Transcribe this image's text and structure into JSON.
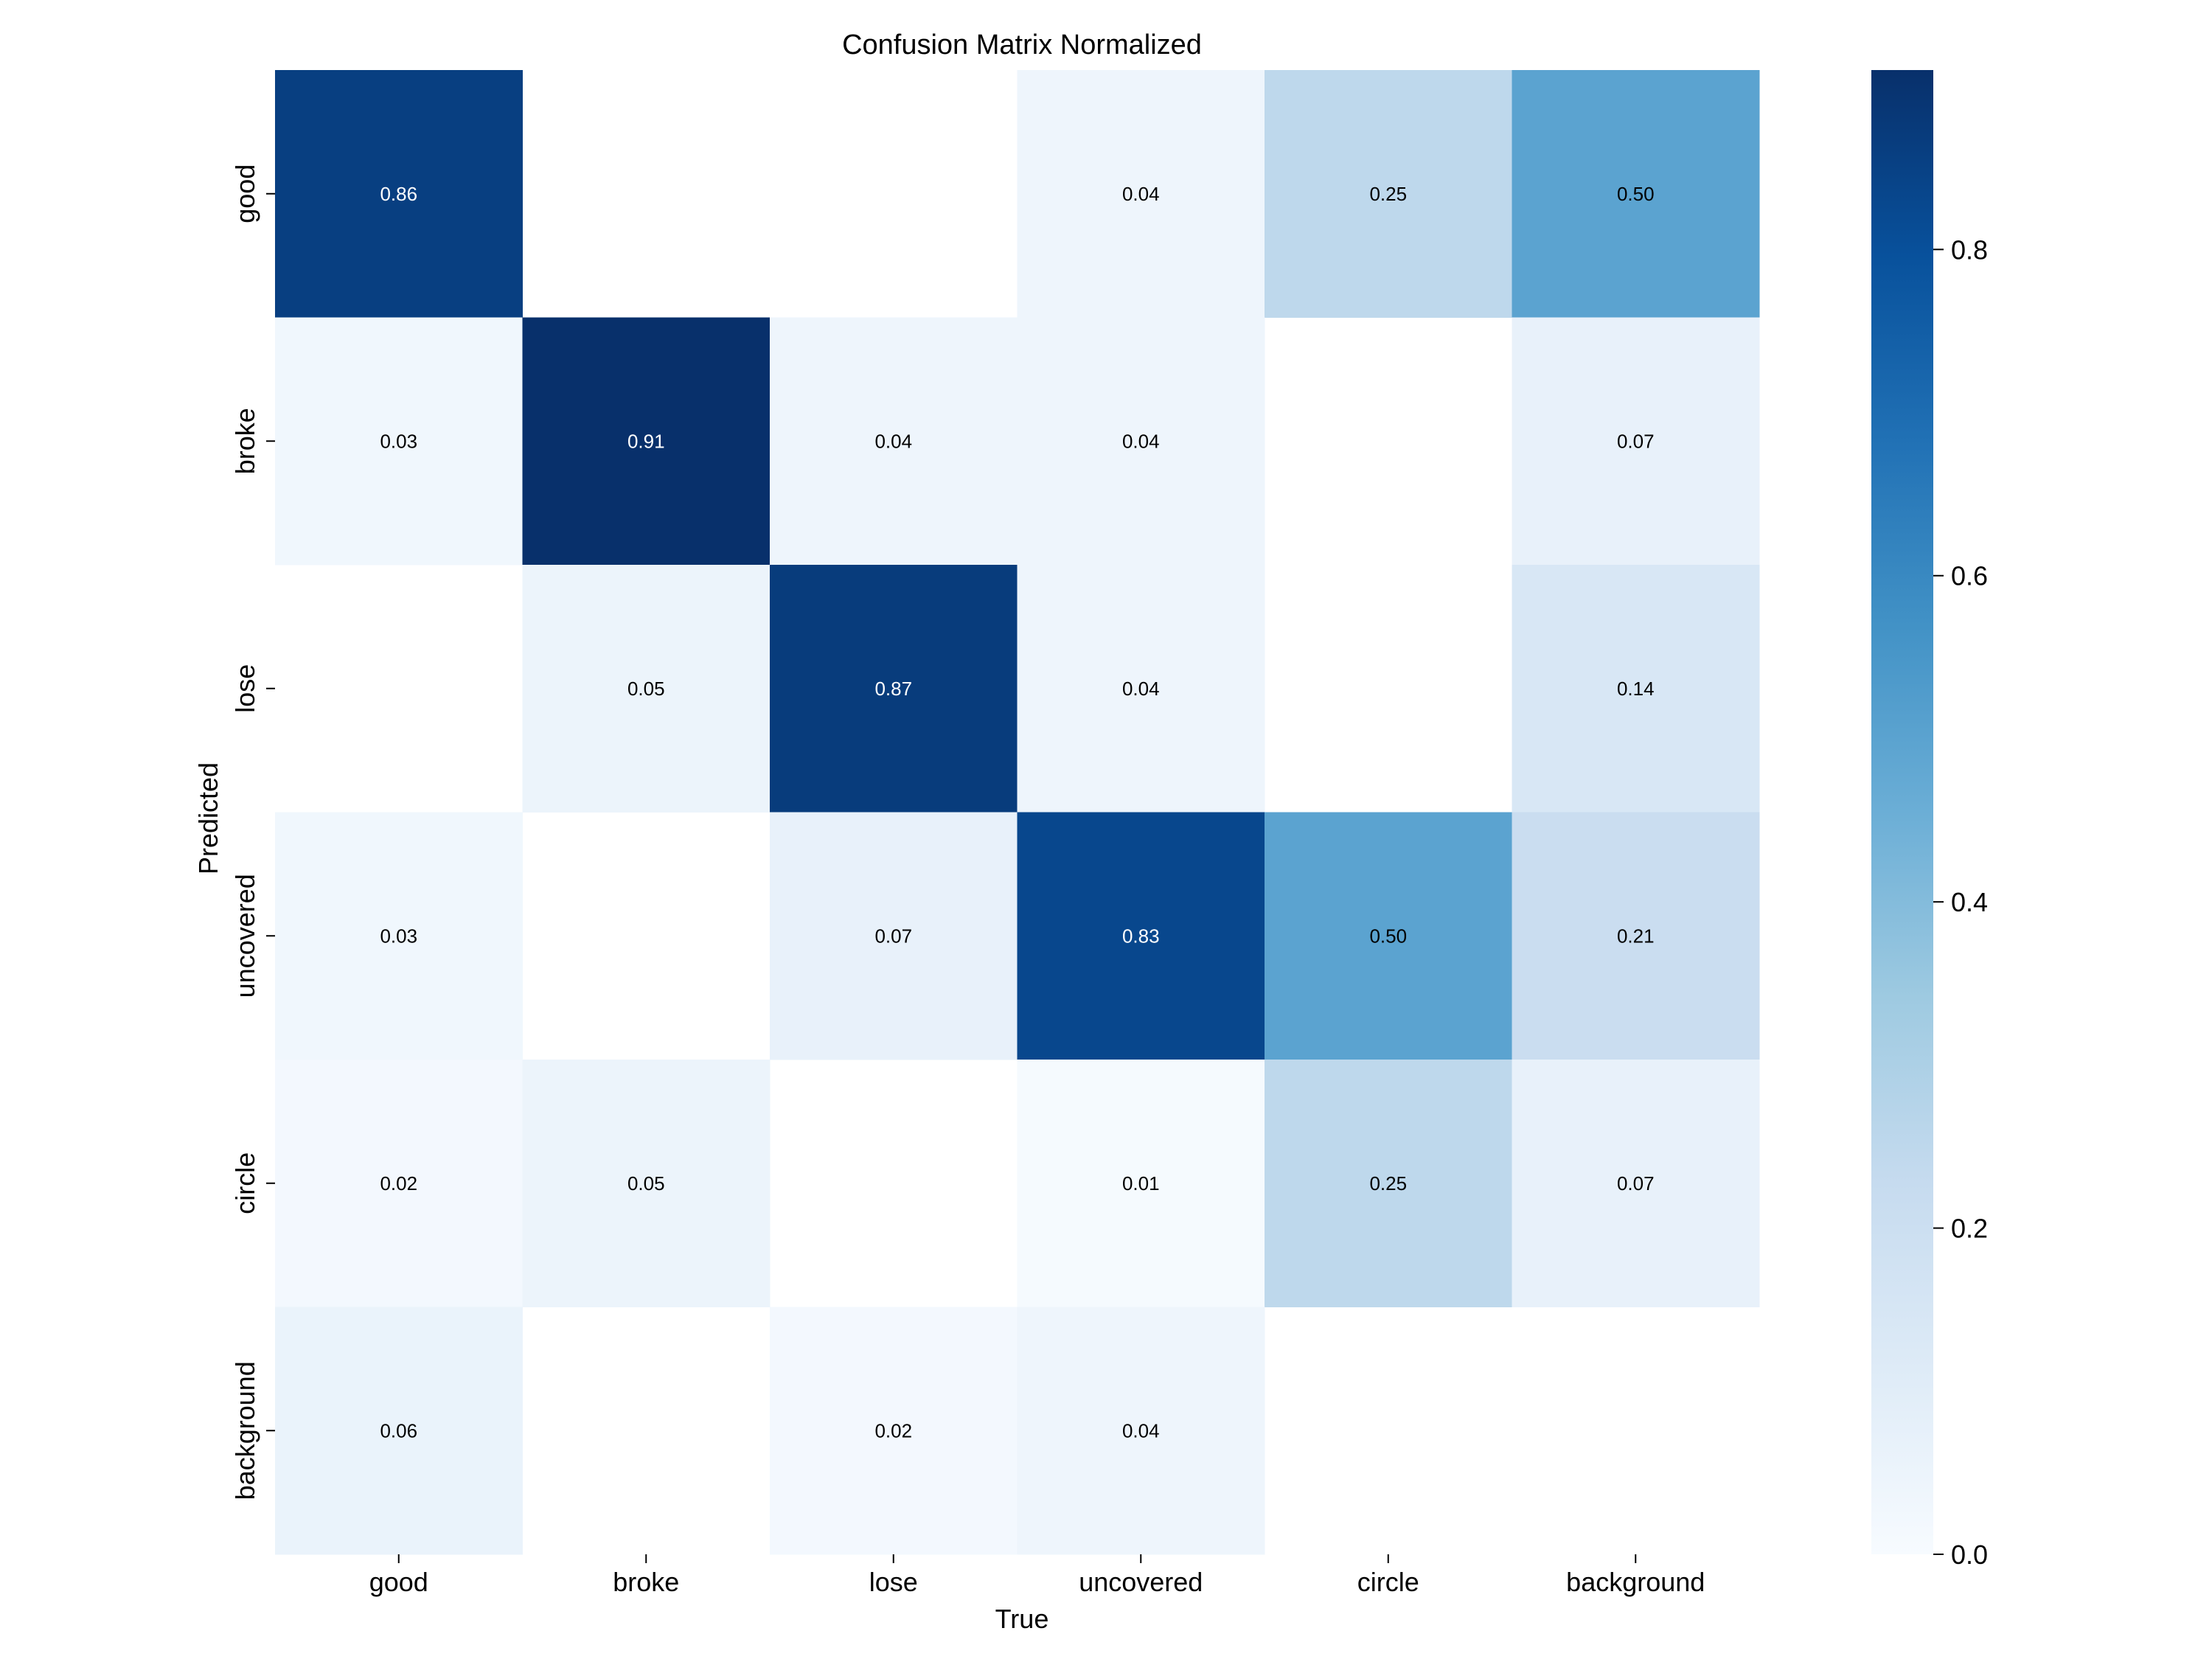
{
  "chart_data": {
    "type": "heatmap",
    "title": "Confusion Matrix Normalized",
    "xlabel": "True",
    "ylabel": "Predicted",
    "x_categories": [
      "good",
      "broke",
      "lose",
      "uncovered",
      "circle",
      "background"
    ],
    "y_categories": [
      "good",
      "broke",
      "lose",
      "uncovered",
      "circle",
      "background"
    ],
    "values": [
      [
        0.86,
        null,
        null,
        0.04,
        0.25,
        0.5
      ],
      [
        0.03,
        0.91,
        0.04,
        0.04,
        null,
        0.07
      ],
      [
        null,
        0.05,
        0.87,
        0.04,
        null,
        0.14
      ],
      [
        0.03,
        null,
        0.07,
        0.83,
        0.5,
        0.21
      ],
      [
        0.02,
        0.05,
        null,
        0.01,
        0.25,
        0.07
      ],
      [
        0.06,
        null,
        0.02,
        0.04,
        null,
        null
      ]
    ],
    "colormap": "Blues",
    "vmin": 0.0,
    "vmax": 0.91,
    "colorbar_ticks": [
      "0.0",
      "0.2",
      "0.4",
      "0.6",
      "0.8"
    ],
    "colorbar_tick_values": [
      0.0,
      0.2,
      0.4,
      0.6,
      0.8
    ]
  }
}
